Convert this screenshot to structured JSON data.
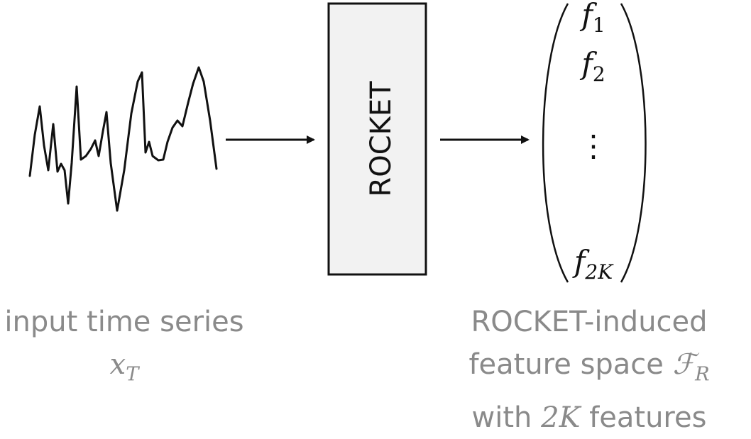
{
  "block": {
    "label": "ROCKET",
    "fill": "#f2f2f2",
    "stroke": "#111111"
  },
  "vector": {
    "entry_first": "f",
    "entry_first_sub": "1",
    "entry_second": "f",
    "entry_second_sub": "2",
    "ellipsis": "⋮",
    "entry_last": "f",
    "entry_last_sub": "2K"
  },
  "captions": {
    "input_line1": "input time series",
    "input_symbol": "x",
    "input_symbol_sub": "T",
    "feature_line1": "ROCKET-induced",
    "feature_line2_text": "feature space ",
    "feature_symbol": "ℱ",
    "feature_symbol_sub": "R",
    "feature_line3_prefix": "with ",
    "feature_line3_math": "2K",
    "feature_line3_suffix": " features"
  },
  "colors": {
    "line": "#111111",
    "caption": "#8a8a8a"
  }
}
